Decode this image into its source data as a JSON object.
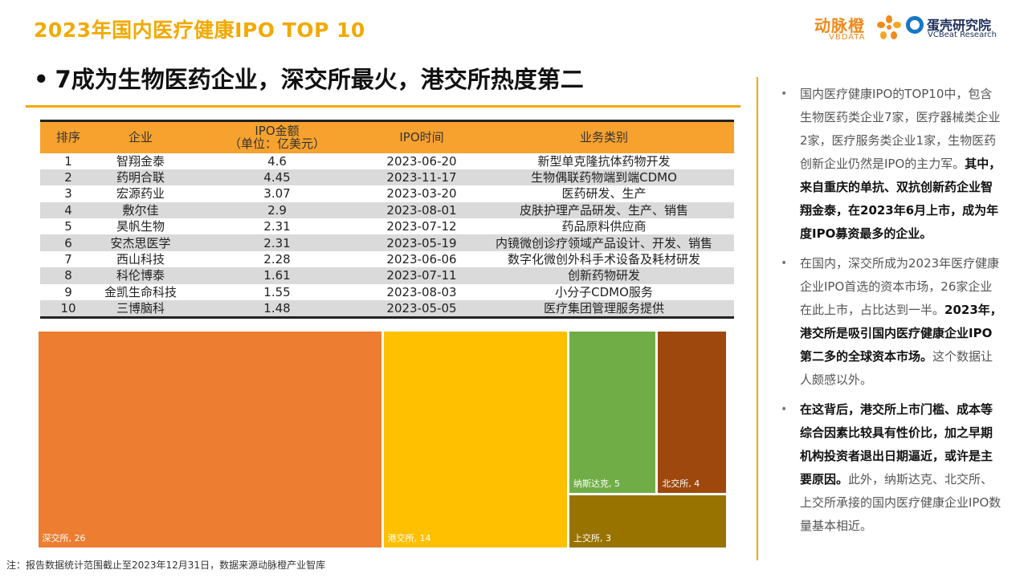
{
  "header": {
    "title": "2023年国内医疗健康IPO TOP 10",
    "subtitle": "7成为生物医药企业，深交所最火，港交所热度第二",
    "logo1_name": "动脉橙",
    "logo1_sub": "VBDATA",
    "logo2_name": "蛋壳研究院",
    "logo2_sub": "VCBeat Research"
  },
  "table": {
    "headers": [
      "排序",
      "企业",
      "IPO金额\n（单位：亿美元）",
      "IPO时间",
      "业务类别"
    ],
    "rows": [
      [
        "1",
        "智翔金泰",
        "4.6",
        "2023-06-20",
        "新型单克隆抗体药物开发"
      ],
      [
        "2",
        "药明合联",
        "4.45",
        "2023-11-17",
        "生物偶联药物端到端CDMO"
      ],
      [
        "3",
        "宏源药业",
        "3.07",
        "2023-03-20",
        "医药研发、生产"
      ],
      [
        "4",
        "敷尔佳",
        "2.9",
        "2023-08-01",
        "皮肤护理产品研发、生产、销售"
      ],
      [
        "5",
        "昊帆生物",
        "2.31",
        "2023-07-12",
        "药品原料供应商"
      ],
      [
        "6",
        "安杰思医学",
        "2.31",
        "2023-05-19",
        "内镜微创诊疗领域产品设计、开发、销售"
      ],
      [
        "7",
        "西山科技",
        "2.28",
        "2023-06-06",
        "数字化微创外科手术设备及耗材研发"
      ],
      [
        "8",
        "科伦博泰",
        "1.61",
        "2023-07-11",
        "创新药物研发"
      ],
      [
        "9",
        "金凯生命科技",
        "1.55",
        "2023-08-03",
        "小分子CDMO服务"
      ],
      [
        "10",
        "三博脑科",
        "1.48",
        "2023-05-05",
        "医疗集团管理服务提供"
      ]
    ]
  },
  "chart_data": {
    "type": "treemap",
    "title": "",
    "series": [
      {
        "name": "深交所",
        "value": 26,
        "label": "深交所, 26",
        "color": "#ED7D31"
      },
      {
        "name": "港交所",
        "value": 14,
        "label": "港交所, 14",
        "color": "#FFC000"
      },
      {
        "name": "纳斯达克",
        "value": 5,
        "label": "纳斯达克, 5",
        "color": "#70AD47"
      },
      {
        "name": "北交所",
        "value": 4,
        "label": "北交所, 4",
        "color": "#9E480E"
      },
      {
        "name": "上交所",
        "value": 3,
        "label": "上交所, 3",
        "color": "#997300"
      }
    ]
  },
  "footnote": "注：报告数据统计范围截止至2023年12月31日，数据来源动脉橙产业智库",
  "notes": [
    {
      "bullet": "•",
      "text_a": "国内医疗健康IPO的TOP10中，包含生物医药类企业7家，医疗器械类企业2家，医疗服务类企业1家，生物医药创新企业仍然是IPO的主力军。",
      "text_b": "其中，来自重庆的单抗、双抗创新药企业智翔金泰，在2023年6月上市，成为年度IPO募资最多的企业。",
      "text_c": ""
    },
    {
      "bullet": "•",
      "text_a": "在国内，深交所成为2023年医疗健康企业IPO首选的资本市场，26家企业在此上市，占比达到一半。",
      "text_b": "2023年，港交所是吸引国内医疗健康企业IPO第二多的全球资本市场。",
      "text_c": "这个数据让人颇感以外。"
    },
    {
      "bullet": "•",
      "text_a": "",
      "text_b": "在这背后，港交所上市门槛、成本等综合因素比较具有性价比，加之早期机构投资者退出日期逼近，或许是主要原因。",
      "text_c": "此外，纳斯达克、北交所、上交所承接的国内医疗健康企业IPO数量基本相近。"
    }
  ]
}
